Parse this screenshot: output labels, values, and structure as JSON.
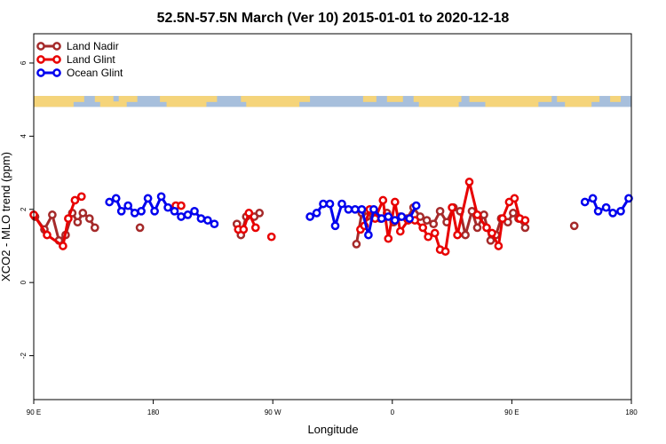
{
  "chart_data": {
    "type": "line",
    "title": "52.5N-57.5N March (Ver 10)   2015-01-01 to 2020-12-18",
    "xlabel": "Longitude",
    "ylabel": "XCO2 - MLO trend (ppm)",
    "xlim": [
      -90,
      360
    ],
    "ylim": [
      -3.2,
      6.8
    ],
    "x_tick_positions": [
      -90,
      0,
      90,
      180,
      270,
      360
    ],
    "x_tick_labels": [
      "90 E",
      "180",
      "90 W",
      "0",
      "90 E",
      "180"
    ],
    "y_ticks": [
      -2,
      0,
      2,
      4,
      6
    ],
    "y_tick_labels": [
      "-2",
      "0",
      "2",
      "4",
      "6"
    ],
    "land_ocean_band": {
      "y_low": 4.8,
      "y_high": 5.1
    },
    "colors": {
      "land": "#f5d47a",
      "ocean": "#a7bfdc"
    },
    "legend": {
      "placement": "top-left"
    },
    "series": [
      {
        "name": "Land Nadir",
        "color": "#a52a2a",
        "segments": [
          [
            [
              -89,
              1.8
            ],
            [
              -82,
              1.45
            ],
            [
              -76,
              1.85
            ],
            [
              -71,
              1.15
            ],
            [
              -66,
              1.3
            ],
            [
              -61,
              1.9
            ],
            [
              -57,
              1.65
            ],
            [
              -53,
              1.9
            ],
            [
              -48,
              1.75
            ],
            [
              -44,
              1.5
            ]
          ],
          [
            [
              -10,
              1.5
            ]
          ],
          [
            [
              63,
              1.6
            ],
            [
              66,
              1.3
            ],
            [
              70,
              1.8
            ],
            [
              76,
              1.8
            ],
            [
              80,
              1.9
            ]
          ],
          [
            [
              153,
              1.05
            ],
            [
              157,
              1.9
            ],
            [
              161,
              1.8
            ],
            [
              166,
              1.95
            ],
            [
              171,
              1.75
            ],
            [
              176,
              1.9
            ],
            [
              181,
              1.65
            ],
            [
              186,
              1.8
            ],
            [
              191,
              1.75
            ],
            [
              196,
              2.05
            ],
            [
              201,
              1.8
            ],
            [
              206,
              1.7
            ],
            [
              211,
              1.6
            ],
            [
              216,
              1.95
            ],
            [
              221,
              1.65
            ],
            [
              226,
              2.05
            ],
            [
              231,
              1.95
            ],
            [
              235,
              1.3
            ],
            [
              240,
              1.95
            ],
            [
              244,
              1.5
            ],
            [
              249,
              1.85
            ],
            [
              254,
              1.15
            ],
            [
              258,
              1.3
            ],
            [
              262,
              1.75
            ],
            [
              267,
              1.65
            ],
            [
              271,
              1.9
            ],
            [
              275,
              1.75
            ],
            [
              280,
              1.5
            ]
          ],
          [
            [
              317,
              1.55
            ]
          ]
        ]
      },
      {
        "name": "Land Glint",
        "color": "#e80000",
        "segments": [
          [
            [
              -90,
              1.85
            ],
            [
              -80,
              1.3
            ],
            [
              -68,
              1.0
            ],
            [
              -64,
              1.75
            ],
            [
              -59,
              2.25
            ],
            [
              -54,
              2.35
            ]
          ],
          [
            [
              17,
              2.1
            ],
            [
              21,
              2.1
            ]
          ],
          [
            [
              64,
              1.45
            ],
            [
              68,
              1.45
            ],
            [
              72,
              1.9
            ],
            [
              77,
              1.5
            ]
          ],
          [
            [
              89,
              1.25
            ]
          ],
          [
            [
              156,
              1.45
            ],
            [
              159,
              1.55
            ],
            [
              163,
              2.0
            ],
            [
              167,
              1.75
            ],
            [
              173,
              2.25
            ],
            [
              177,
              1.2
            ],
            [
              182,
              2.2
            ],
            [
              186,
              1.4
            ],
            [
              192,
              1.7
            ],
            [
              197,
              1.7
            ],
            [
              203,
              1.5
            ],
            [
              207,
              1.25
            ],
            [
              212,
              1.35
            ],
            [
              216,
              0.9
            ],
            [
              220,
              0.85
            ],
            [
              225,
              2.05
            ],
            [
              229,
              1.3
            ],
            [
              238,
              2.75
            ],
            [
              244,
              1.85
            ],
            [
              251,
              1.5
            ],
            [
              255,
              1.35
            ],
            [
              260,
              1.0
            ],
            [
              263,
              1.75
            ],
            [
              268,
              2.2
            ],
            [
              272,
              2.3
            ],
            [
              276,
              1.75
            ],
            [
              280,
              1.7
            ]
          ]
        ]
      },
      {
        "name": "Ocean Glint",
        "color": "#0000ee",
        "segments": [
          [
            [
              -33,
              2.2
            ],
            [
              -28,
              2.3
            ],
            [
              -24,
              1.95
            ],
            [
              -19,
              2.1
            ],
            [
              -14,
              1.9
            ],
            [
              -9,
              1.95
            ],
            [
              -4,
              2.3
            ],
            [
              1,
              1.95
            ],
            [
              6,
              2.35
            ],
            [
              11,
              2.05
            ],
            [
              16,
              1.95
            ],
            [
              21,
              1.8
            ],
            [
              26,
              1.85
            ],
            [
              31,
              1.95
            ],
            [
              36,
              1.75
            ],
            [
              41,
              1.7
            ],
            [
              46,
              1.6
            ]
          ],
          [
            [
              118,
              1.8
            ],
            [
              123,
              1.9
            ],
            [
              128,
              2.15
            ],
            [
              133,
              2.15
            ],
            [
              137,
              1.55
            ],
            [
              142,
              2.15
            ],
            [
              147,
              2.0
            ],
            [
              152,
              2.0
            ],
            [
              157,
              2.0
            ],
            [
              162,
              1.3
            ],
            [
              166,
              2.0
            ],
            [
              172,
              1.75
            ],
            [
              177,
              1.8
            ],
            [
              182,
              1.7
            ],
            [
              187,
              1.8
            ],
            [
              193,
              1.75
            ],
            [
              198,
              2.1
            ]
          ],
          [
            [
              325,
              2.2
            ],
            [
              331,
              2.3
            ],
            [
              335,
              1.95
            ],
            [
              341,
              2.05
            ],
            [
              346,
              1.9
            ],
            [
              352,
              1.95
            ],
            [
              358,
              2.3
            ]
          ]
        ]
      }
    ]
  }
}
